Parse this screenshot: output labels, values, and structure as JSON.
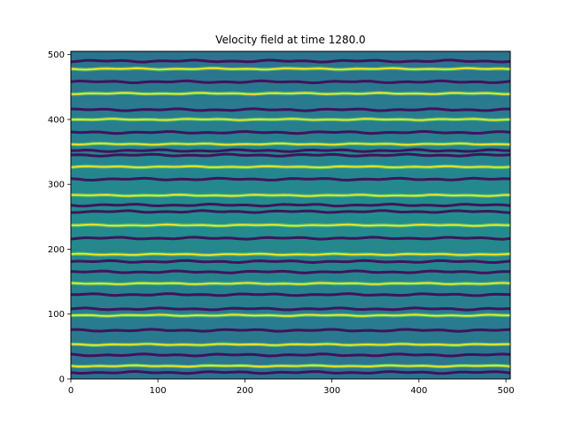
{
  "chart_data": {
    "type": "heatmap",
    "title": "Velocity field at time 1280.0",
    "xlabel": "",
    "ylabel": "",
    "xlim": [
      0,
      505
    ],
    "ylim": [
      0,
      505
    ],
    "x_ticks": [
      0,
      100,
      200,
      300,
      400,
      500
    ],
    "y_ticks": [
      0,
      100,
      200,
      300,
      400,
      500
    ],
    "colormap": "viridis",
    "colors": {
      "dark": "#440154",
      "mid": "#21918c",
      "bright": "#fde725"
    },
    "grid": false,
    "legend": "none",
    "bright_stripe_y": [
      20,
      53,
      98,
      147,
      192,
      237,
      283,
      327,
      362,
      400,
      440,
      478
    ],
    "dark_stripe_y": [
      10,
      37,
      75,
      108,
      130,
      165,
      181,
      217,
      258,
      268,
      308,
      345,
      352,
      380,
      415,
      458,
      490
    ]
  }
}
